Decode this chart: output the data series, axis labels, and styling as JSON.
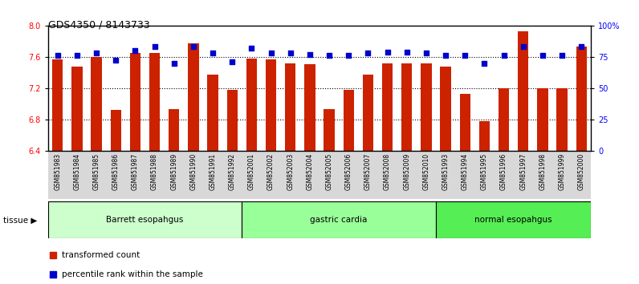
{
  "title": "GDS4350 / 8143733",
  "samples": [
    "GSM851983",
    "GSM851984",
    "GSM851985",
    "GSM851986",
    "GSM851987",
    "GSM851988",
    "GSM851989",
    "GSM851990",
    "GSM851991",
    "GSM851992",
    "GSM852001",
    "GSM852002",
    "GSM852003",
    "GSM852004",
    "GSM852005",
    "GSM852006",
    "GSM852007",
    "GSM852008",
    "GSM852009",
    "GSM852010",
    "GSM851993",
    "GSM851994",
    "GSM851995",
    "GSM851996",
    "GSM851997",
    "GSM851998",
    "GSM851999",
    "GSM852000"
  ],
  "bar_values": [
    7.57,
    7.47,
    7.6,
    6.92,
    7.65,
    7.65,
    6.93,
    7.77,
    7.37,
    7.18,
    7.58,
    7.57,
    7.52,
    7.51,
    6.93,
    7.18,
    7.37,
    7.52,
    7.52,
    7.52,
    7.47,
    7.13,
    6.78,
    7.2,
    7.93,
    7.2,
    7.2,
    7.73
  ],
  "percentile_values": [
    76,
    76,
    78,
    72,
    80,
    83,
    70,
    83,
    78,
    71,
    82,
    78,
    78,
    77,
    76,
    76,
    78,
    79,
    79,
    78,
    76,
    76,
    70,
    76,
    83,
    76,
    76,
    83
  ],
  "groups": [
    {
      "label": "Barrett esopahgus",
      "start": 0,
      "end": 10,
      "color": "#ccffcc"
    },
    {
      "label": "gastric cardia",
      "start": 10,
      "end": 20,
      "color": "#99ff99"
    },
    {
      "label": "normal esopahgus",
      "start": 20,
      "end": 28,
      "color": "#55ee55"
    }
  ],
  "ylim_left": [
    6.4,
    8.0
  ],
  "ylim_right": [
    0,
    100
  ],
  "yticks_left": [
    6.4,
    6.8,
    7.2,
    7.6,
    8.0
  ],
  "yticks_right": [
    0,
    25,
    50,
    75,
    100
  ],
  "ytick_labels_right": [
    "0",
    "25",
    "50",
    "75",
    "100%"
  ],
  "bar_color": "#cc2200",
  "dot_color": "#0000cc",
  "bar_width": 0.55,
  "legend_items": [
    {
      "label": "transformed count",
      "color": "#cc2200"
    },
    {
      "label": "percentile rank within the sample",
      "color": "#0000cc"
    }
  ],
  "tissue_label": "tissue",
  "dotted_lines": [
    7.6,
    7.2,
    6.8
  ]
}
